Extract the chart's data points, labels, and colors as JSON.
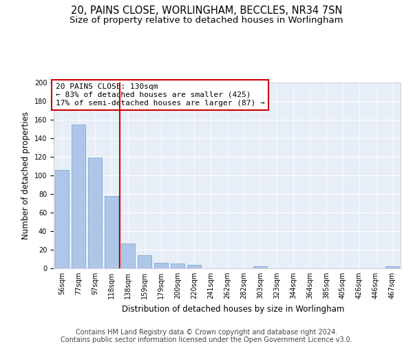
{
  "title_line1": "20, PAINS CLOSE, WORLINGHAM, BECCLES, NR34 7SN",
  "title_line2": "Size of property relative to detached houses in Worlingham",
  "xlabel": "Distribution of detached houses by size in Worlingham",
  "ylabel": "Number of detached properties",
  "footer_line1": "Contains HM Land Registry data © Crown copyright and database right 2024.",
  "footer_line2": "Contains public sector information licensed under the Open Government Licence v3.0.",
  "annotation_line1": "20 PAINS CLOSE: 130sqm",
  "annotation_line2": "← 83% of detached houses are smaller (425)",
  "annotation_line3": "17% of semi-detached houses are larger (87) →",
  "bar_color": "#aec6e8",
  "bar_edge_color": "#6a9fd0",
  "vline_color": "#cc0000",
  "annotation_box_edge_color": "#cc0000",
  "background_color": "#e8eef8",
  "categories": [
    "56sqm",
    "77sqm",
    "97sqm",
    "118sqm",
    "138sqm",
    "159sqm",
    "179sqm",
    "200sqm",
    "220sqm",
    "241sqm",
    "262sqm",
    "282sqm",
    "303sqm",
    "323sqm",
    "344sqm",
    "364sqm",
    "385sqm",
    "405sqm",
    "426sqm",
    "446sqm",
    "467sqm"
  ],
  "values": [
    106,
    155,
    119,
    78,
    27,
    14,
    6,
    5,
    4,
    0,
    0,
    0,
    2,
    0,
    0,
    0,
    0,
    0,
    0,
    0,
    2
  ],
  "ylim": [
    0,
    200
  ],
  "yticks": [
    0,
    20,
    40,
    60,
    80,
    100,
    120,
    140,
    160,
    180,
    200
  ],
  "vline_x_index": 4,
  "title_fontsize": 10.5,
  "subtitle_fontsize": 9.5,
  "axis_label_fontsize": 8.5,
  "tick_fontsize": 7,
  "annotation_fontsize": 8,
  "footer_fontsize": 7
}
